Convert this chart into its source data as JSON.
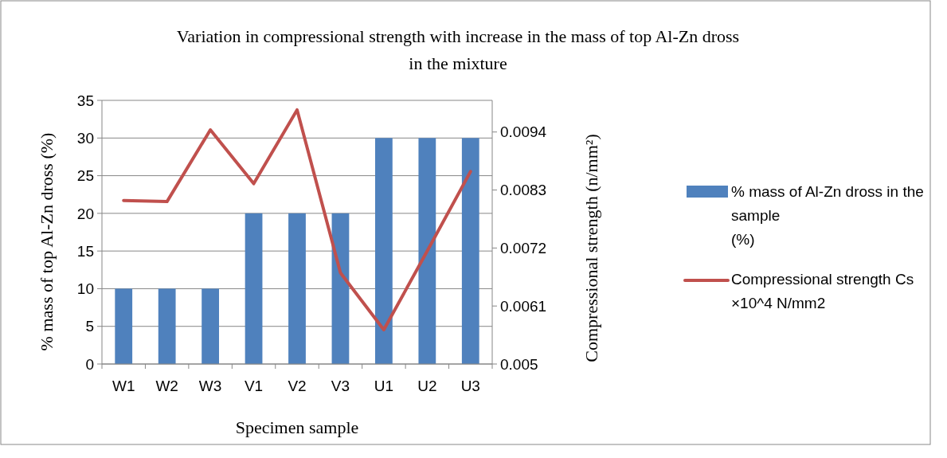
{
  "chart_data": {
    "type": "bar",
    "title": "Variation in compressional strength with increase in the mass of  top Al-Zn dross in the mixture",
    "xlabel": "Specimen sample",
    "ylabel": "% mass of  top Al-Zn dross (%)",
    "y2label": "Compressional strength (n/mm²)",
    "categories": [
      "W1",
      "W2",
      "W3",
      "V1",
      "V2",
      "V3",
      "U1",
      "U2",
      "U3"
    ],
    "series": [
      {
        "name": "% mass of Al-Zn dross in the sample\n(%)",
        "color": "#4f81bd",
        "values": [
          10,
          10,
          10,
          20,
          20,
          20,
          30,
          30,
          30
        ]
      },
      {
        "name": "Compressional strength Cs\n×10^4 N/mm2",
        "type": "line",
        "axis": "y2",
        "color": "#c0504d",
        "values": [
          0.0081,
          0.00808,
          0.00944,
          0.00842,
          0.00982,
          0.00673,
          0.00565,
          0.00714,
          0.00865
        ]
      }
    ],
    "ylim": [
      0,
      35
    ],
    "yticks": [
      0,
      5,
      10,
      15,
      20,
      25,
      30,
      35
    ],
    "y2lim": [
      0.005,
      0.01
    ],
    "y2ticks": [
      0.005,
      0.0061,
      0.0072,
      0.0083,
      0.0094
    ],
    "grid": "y",
    "legend": "right",
    "marker": "none",
    "line_style": "solid"
  }
}
